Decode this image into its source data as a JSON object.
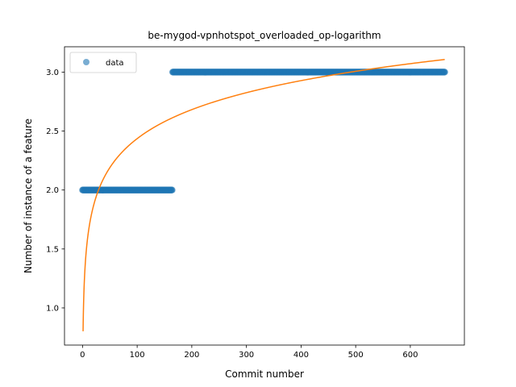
{
  "chart_data": {
    "type": "scatter",
    "title": "be-mygod-vpnhotspot_overloaded_op-logarithm",
    "xlabel": "Commit number",
    "ylabel": "Number of instance of a feature",
    "xlim": [
      -33,
      699
    ],
    "ylim": [
      0.685,
      3.215
    ],
    "xticks": [
      0,
      100,
      200,
      300,
      400,
      500,
      600
    ],
    "yticks": [
      1.0,
      1.5,
      2.0,
      2.5,
      3.0
    ],
    "ytick_labels": [
      "1.0",
      "1.5",
      "2.0",
      "2.5",
      "3.0"
    ],
    "legend": {
      "position": "top-left",
      "entries": [
        "data"
      ]
    },
    "grid": false,
    "series": [
      {
        "name": "data",
        "kind": "scatter",
        "color": "#1f77b4",
        "segments": [
          {
            "x_start": 0,
            "x_end": 164,
            "y": 2
          },
          {
            "x_start": 165,
            "x_end": 663,
            "y": 3
          }
        ]
      },
      {
        "kind": "line",
        "color": "#ff7f0e",
        "fit": {
          "form": "a + b*ln(x)",
          "a": 0.802,
          "b": 0.3548,
          "x_start": 1,
          "x_end": 663
        }
      }
    ]
  }
}
